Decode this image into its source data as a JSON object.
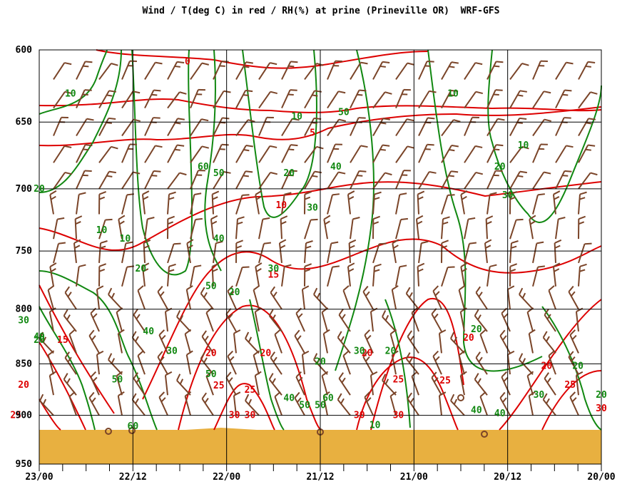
{
  "title": "Wind / T(deg C) in red / RH(%) at prine (Prineville OR)  WRF-GFS",
  "colors": {
    "temperature": "#dd0000",
    "humidity": "#118811",
    "wind": "#7a4428",
    "terrain": "#e8b040",
    "grid": "#000000"
  },
  "chart_data": {
    "type": "contour",
    "title": "Wind / T(deg C) in red / RH(%) at prine (Prineville OR)  WRF-GFS",
    "x_axis": {
      "ticks": [
        "23/00",
        "22/12",
        "22/00",
        "21/12",
        "21/00",
        "20/12",
        "20/00"
      ],
      "note": "time runs right-to-left (latest at left)"
    },
    "y_axis": {
      "ticks": [
        600,
        650,
        700,
        750,
        800,
        850,
        900,
        950
      ],
      "ylim": [
        950,
        600
      ],
      "scale": "pressure (hPa), log-like",
      "inverted": true
    },
    "temperature_labels": [
      {
        "t": "22/05",
        "p": 608,
        "value": "0"
      },
      {
        "t": "21/13",
        "p": 658,
        "value": "5"
      },
      {
        "t": "21/17",
        "p": 713,
        "value": "10"
      },
      {
        "t": "21/18",
        "p": 770,
        "value": "15"
      },
      {
        "t": "22/21",
        "p": 828,
        "value": "15"
      },
      {
        "t": "23/02",
        "p": 870,
        "value": "20"
      },
      {
        "t": "22/02",
        "p": 840,
        "value": "20"
      },
      {
        "t": "21/19",
        "p": 840,
        "value": "20"
      },
      {
        "t": "21/06",
        "p": 840,
        "value": "20"
      },
      {
        "t": "20/17",
        "p": 826,
        "value": "20"
      },
      {
        "t": "20/07",
        "p": 852,
        "value": "20"
      },
      {
        "t": "23/03",
        "p": 900,
        "value": "25"
      },
      {
        "t": "22/01",
        "p": 871,
        "value": "25"
      },
      {
        "t": "21/21",
        "p": 875,
        "value": "25"
      },
      {
        "t": "21/02",
        "p": 865,
        "value": "25"
      },
      {
        "t": "20/20",
        "p": 866,
        "value": "25"
      },
      {
        "t": "20/04",
        "p": 870,
        "value": "25"
      },
      {
        "t": "21/23",
        "p": 900,
        "value": "30"
      },
      {
        "t": "21/21",
        "p": 900,
        "value": "30"
      },
      {
        "t": "21/07",
        "p": 900,
        "value": "30"
      },
      {
        "t": "21/02",
        "p": 900,
        "value": "30"
      },
      {
        "t": "20/00",
        "p": 893,
        "value": "30"
      }
    ],
    "rh_labels": [
      {
        "t": "22/20",
        "p": 630,
        "value": "10"
      },
      {
        "t": "21/15",
        "p": 646,
        "value": "10"
      },
      {
        "t": "20/19",
        "p": 630,
        "value": "10"
      },
      {
        "t": "20/10",
        "p": 667,
        "value": "10"
      },
      {
        "t": "22/16",
        "p": 733,
        "value": "10"
      },
      {
        "t": "22/13",
        "p": 740,
        "value": "10"
      },
      {
        "t": "20/13",
        "p": 683,
        "value": "20"
      },
      {
        "t": "21/16",
        "p": 688,
        "value": "20"
      },
      {
        "t": "23/00",
        "p": 700,
        "value": "20"
      },
      {
        "t": "22/11",
        "p": 765,
        "value": "20"
      },
      {
        "t": "21/23",
        "p": 785,
        "value": "20"
      },
      {
        "t": "23/00",
        "p": 828,
        "value": "20"
      },
      {
        "t": "21/12",
        "p": 848,
        "value": "20"
      },
      {
        "t": "21/03",
        "p": 838,
        "value": "20"
      },
      {
        "t": "20/16",
        "p": 818,
        "value": "20"
      },
      {
        "t": "20/03",
        "p": 852,
        "value": "20"
      },
      {
        "t": "20/00",
        "p": 880,
        "value": "20"
      },
      {
        "t": "23/02",
        "p": 810,
        "value": "30"
      },
      {
        "t": "22/07",
        "p": 838,
        "value": "30"
      },
      {
        "t": "21/18",
        "p": 765,
        "value": "30"
      },
      {
        "t": "21/13",
        "p": 715,
        "value": "30"
      },
      {
        "t": "21/07",
        "p": 838,
        "value": "30"
      },
      {
        "t": "20/12",
        "p": 705,
        "value": "30"
      },
      {
        "t": "20/08",
        "p": 880,
        "value": "30"
      },
      {
        "t": "22/10",
        "p": 820,
        "value": "40"
      },
      {
        "t": "22/01",
        "p": 740,
        "value": "40"
      },
      {
        "t": "21/16",
        "p": 883,
        "value": "40"
      },
      {
        "t": "21/10",
        "p": 683,
        "value": "40"
      },
      {
        "t": "20/16",
        "p": 895,
        "value": "40"
      },
      {
        "t": "20/13",
        "p": 898,
        "value": "40"
      },
      {
        "t": "23/00",
        "p": 825,
        "value": "40"
      },
      {
        "t": "22/01",
        "p": 688,
        "value": "50"
      },
      {
        "t": "22/02",
        "p": 780,
        "value": "50"
      },
      {
        "t": "22/02",
        "p": 860,
        "value": "50"
      },
      {
        "t": "22/14",
        "p": 865,
        "value": "50"
      },
      {
        "t": "21/09",
        "p": 643,
        "value": "50"
      },
      {
        "t": "21/14",
        "p": 890,
        "value": "50"
      },
      {
        "t": "21/12",
        "p": 890,
        "value": "50"
      },
      {
        "t": "22/03",
        "p": 683,
        "value": "60"
      },
      {
        "t": "22/12",
        "p": 911,
        "value": "60"
      },
      {
        "t": "21/11",
        "p": 883,
        "value": "60"
      },
      {
        "t": "21/05",
        "p": 910,
        "value": "10"
      }
    ]
  }
}
